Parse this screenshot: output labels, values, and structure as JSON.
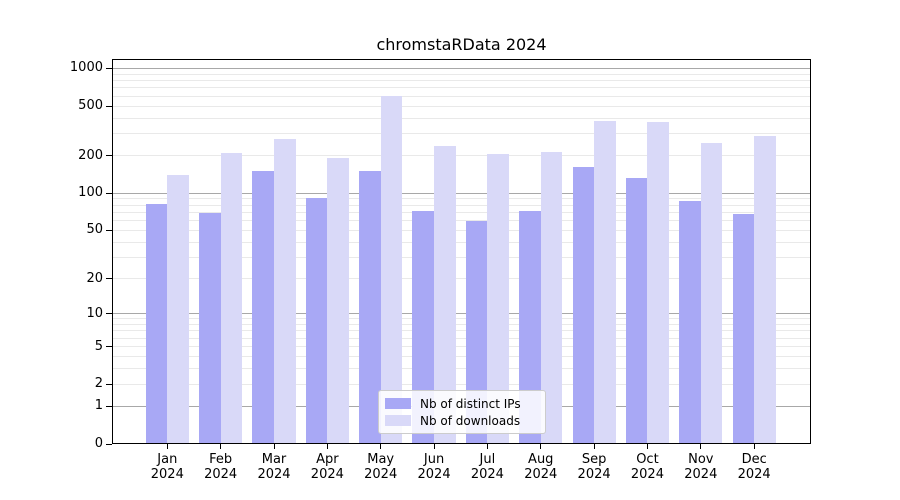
{
  "title": "chromstaRData 2024",
  "legend": {
    "items": [
      {
        "label": "Nb of distinct IPs",
        "series_key": "bar_distinct_ips"
      },
      {
        "label": "Nb of downloads",
        "series_key": "bar_downloads"
      }
    ]
  },
  "y_axis": {
    "tick_labels": [
      "1000",
      "500",
      "200",
      "100",
      "50",
      "20",
      "10",
      "5",
      "2",
      "1",
      "0"
    ]
  },
  "x_axis": {
    "tick_months": [
      "Jan",
      "Feb",
      "Mar",
      "Apr",
      "May",
      "Jun",
      "Jul",
      "Aug",
      "Sep",
      "Oct",
      "Nov",
      "Dec"
    ],
    "tick_year": "2024"
  },
  "colors": {
    "bar_distinct_ips": "#a8a8f5",
    "bar_downloads": "#d9d9f8",
    "grid_major": "#a8a8a8",
    "grid_minor": "#e9e9e9",
    "axis_frame": "#000000",
    "legend_border": "#cccccc",
    "legend_background": "rgba(255,255,255,0.85)",
    "text": "#000000",
    "background": "#ffffff"
  },
  "chart_data": {
    "type": "bar",
    "title": "chromstaRData 2024",
    "categories": [
      "Jan 2024",
      "Feb 2024",
      "Mar 2024",
      "Apr 2024",
      "May 2024",
      "Jun 2024",
      "Jul 2024",
      "Aug 2024",
      "Sep 2024",
      "Oct 2024",
      "Nov 2024",
      "Dec 2024"
    ],
    "series": [
      {
        "name": "Nb of distinct IPs",
        "values": [
          82,
          69,
          150,
          91,
          150,
          72,
          59,
          72,
          161,
          133,
          86,
          68
        ]
      },
      {
        "name": "Nb of downloads",
        "values": [
          140,
          210,
          273,
          193,
          600,
          238,
          207,
          213,
          382,
          372,
          254,
          286
        ]
      }
    ],
    "xlabel": "",
    "ylabel": "",
    "yscale": "log10(1+y)",
    "yticks": [
      0,
      1,
      2,
      5,
      10,
      20,
      50,
      100,
      200,
      500,
      1000
    ],
    "minor_gridlines": [
      2,
      3,
      4,
      5,
      6,
      7,
      8,
      9,
      20,
      30,
      40,
      50,
      60,
      70,
      80,
      90,
      200,
      300,
      400,
      500,
      600,
      700,
      800,
      900
    ],
    "major_gridlines": [
      1,
      10,
      100,
      1000
    ],
    "ylim": [
      0,
      1190
    ],
    "grid": true,
    "legend_position": "lower center inside"
  }
}
